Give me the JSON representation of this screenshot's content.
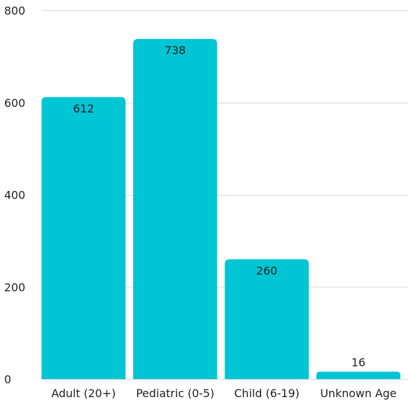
{
  "chart_data": {
    "type": "bar",
    "title": "",
    "xlabel": "",
    "ylabel": "",
    "categories": [
      "Adult (20+)",
      "Pediatric (0-5)",
      "Child (6-19)",
      "Unknown Age"
    ],
    "values": [
      612,
      738,
      260,
      16
    ],
    "data_labels": [
      "612",
      "738",
      "260",
      "16"
    ],
    "ylim": [
      0,
      800
    ],
    "yticks": [
      0,
      200,
      400,
      600,
      800
    ],
    "ytick_labels": [
      "0",
      "200",
      "400",
      "600",
      "800"
    ],
    "grid": true,
    "legend": "none",
    "bar_color": "#00c5d4"
  }
}
